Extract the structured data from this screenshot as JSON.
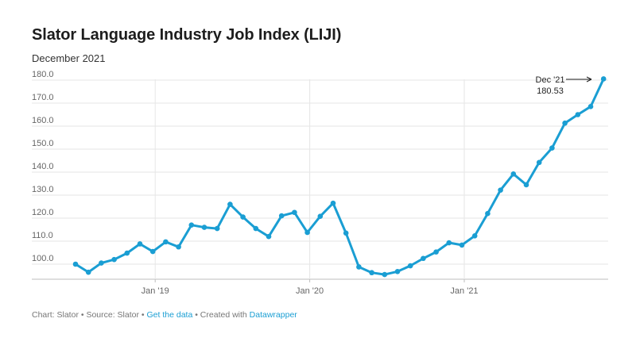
{
  "chart_data": {
    "type": "line",
    "title": "Slator Language Industry Job Index (LIJI)",
    "subtitle": "December 2021",
    "ylim": [
      95,
      180
    ],
    "y_ticks": [
      "180.0",
      "170.0",
      "160.0",
      "150.0",
      "140.0",
      "130.0",
      "120.0",
      "110.0",
      "100.0"
    ],
    "y_tick_values": [
      180,
      170,
      160,
      150,
      140,
      130,
      120,
      110,
      100
    ],
    "x_ticks": [
      {
        "label": "Jan '19",
        "month_index": 6
      },
      {
        "label": "Jan '20",
        "month_index": 18
      },
      {
        "label": "Jan '21",
        "month_index": 30
      }
    ],
    "grid": true,
    "color": "#1a9ed3",
    "series": [
      {
        "x_start": "Jul 2018",
        "values": [
          100.0,
          96.5,
          100.5,
          102.0,
          104.8,
          108.8,
          105.5,
          109.7,
          107.5,
          117.0,
          116.0,
          115.5,
          126.0,
          120.5,
          115.5,
          112.0,
          121.0,
          122.5,
          113.8,
          120.8,
          126.5,
          113.5,
          98.8,
          96.3,
          95.5,
          96.8,
          99.3,
          102.5,
          105.3,
          109.3,
          108.3,
          112.3,
          122.0,
          132.2,
          139.2,
          134.5,
          144.2,
          150.5,
          161.3,
          165.0,
          168.5,
          180.53
        ]
      }
    ],
    "annotation": {
      "label": "Dec '21",
      "value": "180.53"
    }
  },
  "footer": {
    "prefix": "Chart: Slator • Source: Slator • ",
    "data_link": "Get the data",
    "middle": " • Created with ",
    "tool_link": "Datawrapper"
  }
}
